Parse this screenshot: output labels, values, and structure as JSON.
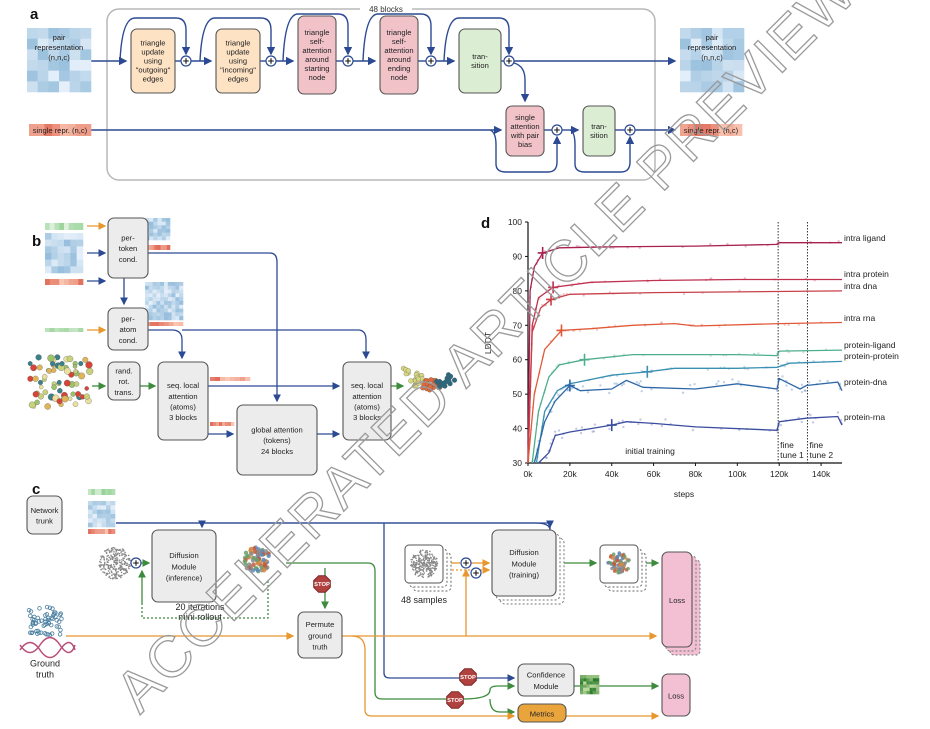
{
  "watermark": "ACCELERATED ARTICLE PREVIEW",
  "colors": {
    "blue_arrow": "#2c4a94",
    "orange_arrow": "#e8962e",
    "green_arrow": "#3d8b3d",
    "peach_box": "#fde2c4",
    "pink_box": "#f1c3c9",
    "green_box": "#dbedd3",
    "gray_box": "#ececec",
    "loss_box": "#f2c0d2",
    "metrics_box": "#e9a53c"
  },
  "panel_a": {
    "label": "a",
    "repeat": "48 blocks",
    "pair_in": [
      "pair",
      "representation",
      "(n,n,c)"
    ],
    "pair_out": [
      "pair",
      "representation",
      "(n,n,c)"
    ],
    "single_in": "single repr. (n,c)",
    "single_out": "single repr. (n,c)",
    "tri_out": [
      "triangle",
      "update",
      "using",
      "\"outgoing\"",
      "edges"
    ],
    "tri_in": [
      "triangle",
      "update",
      "using",
      "\"incoming\"",
      "edges"
    ],
    "tri_att_start": [
      "triangle",
      "self-",
      "attention",
      "around",
      "starting",
      "node"
    ],
    "tri_att_end": [
      "triangle",
      "self-",
      "attention",
      "around",
      "ending",
      "node"
    ],
    "transition_pair": [
      "tran-",
      "sition"
    ],
    "single_att": [
      "single",
      "attention",
      "with pair",
      "bias"
    ],
    "transition_single": [
      "tran-",
      "sition"
    ]
  },
  "panel_b": {
    "label": "b",
    "per_token": [
      "per-",
      "token",
      "cond."
    ],
    "per_atom": [
      "per-",
      "atom",
      "cond."
    ],
    "rand_rot": [
      "rand.",
      "rot.",
      "trans."
    ],
    "seq_local_1": [
      "seq. local",
      "attention",
      "(atoms)",
      "3 blocks"
    ],
    "global_att": [
      "global attention",
      "(tokens)",
      "24 blocks"
    ],
    "seq_local_2": [
      "seq. local",
      "attention",
      "(atoms)",
      "3 blocks"
    ]
  },
  "panel_c": {
    "label": "c",
    "network_trunk": [
      "Network",
      "trunk"
    ],
    "diff_inference": [
      "Diffusion",
      "Module",
      "(inference)"
    ],
    "rollout": [
      "20 iterations",
      "mini rollout"
    ],
    "stop": "STOP",
    "permute": [
      "Permute",
      "ground",
      "truth"
    ],
    "ground_truth": [
      "Ground",
      "truth"
    ],
    "samples": "48 samples",
    "diff_training": [
      "Diffusion",
      "Module",
      "(training)"
    ],
    "loss_main": [
      "Loss"
    ],
    "confidence": [
      "Confidence",
      "Module"
    ],
    "metrics": [
      "Metrics"
    ],
    "loss_small": [
      "Loss"
    ]
  },
  "chart_data": {
    "panel_label": "d",
    "type": "line",
    "xlabel": "steps",
    "ylabel": "LDDT",
    "xlim": [
      0,
      150000
    ],
    "ylim": [
      30,
      100
    ],
    "x_ticks": [
      "0k",
      "20k",
      "40k",
      "60k",
      "80k",
      "100k",
      "120k",
      "140k"
    ],
    "x_tick_values": [
      0,
      20000,
      40000,
      60000,
      80000,
      100000,
      120000,
      140000
    ],
    "y_ticks": [
      "30",
      "40",
      "50",
      "60",
      "70",
      "80",
      "90",
      "100"
    ],
    "y_tick_values": [
      30,
      40,
      50,
      60,
      70,
      80,
      90,
      100
    ],
    "grid": false,
    "phase_boundaries": [
      119500,
      133500
    ],
    "phase_labels": [
      "initial training",
      "fine tune 1",
      "fine tune 2"
    ],
    "series": [
      {
        "name": "intra ligand",
        "color": "#a8204c",
        "marker": [
          7000,
          91
        ],
        "x": [
          0,
          1000,
          3000,
          7000,
          15000,
          40000,
          80000,
          119000,
          120000,
          150000
        ],
        "y": [
          30,
          80,
          87,
          91,
          92.5,
          92.8,
          93,
          93.5,
          94,
          94
        ]
      },
      {
        "name": "intra protein",
        "color": "#c0304f",
        "marker": [
          12000,
          81
        ],
        "x": [
          0,
          2000,
          5000,
          12000,
          30000,
          60000,
          100000,
          150000
        ],
        "y": [
          30,
          70,
          78,
          81,
          82.5,
          83,
          83.3,
          83.3
        ]
      },
      {
        "name": "intra dna",
        "color": "#c8404a",
        "marker": [
          11000,
          77.5
        ],
        "x": [
          0,
          2000,
          6000,
          11000,
          20000,
          60000,
          150000
        ],
        "y": [
          30,
          68,
          75,
          77.5,
          79,
          79.5,
          80
        ]
      },
      {
        "name": "intra rna",
        "color": "#e05a3a",
        "marker": [
          16000,
          68.5
        ],
        "x": [
          0,
          3000,
          8000,
          16000,
          30000,
          50000,
          70000,
          80000,
          120000,
          150000
        ],
        "y": [
          30,
          50,
          63,
          68.5,
          69,
          70,
          70.5,
          69.8,
          70.5,
          70.8
        ]
      },
      {
        "name": "protein-ligand",
        "color": "#4fae8e",
        "marker": [
          27000,
          60
        ],
        "x": [
          2000,
          5000,
          10000,
          15000,
          27000,
          50000,
          100000,
          119000,
          120000,
          150000
        ],
        "y": [
          30,
          45,
          55,
          58.5,
          60,
          61.5,
          61.5,
          61.2,
          62.5,
          62.8
        ]
      },
      {
        "name": "protein-protein",
        "color": "#3a90b2",
        "marker": [
          57000,
          56.5
        ],
        "x": [
          4000,
          8000,
          14000,
          20000,
          40000,
          57000,
          70000,
          100000,
          119000,
          125000,
          150000
        ],
        "y": [
          30,
          45,
          51,
          53,
          55.5,
          56.5,
          57.5,
          57.5,
          57.8,
          59,
          59.5
        ]
      },
      {
        "name": "protein-dna",
        "color": "#2e68a8",
        "marker": [
          20000,
          52.5
        ],
        "x": [
          3000,
          8000,
          13000,
          20000,
          25000,
          40000,
          47000,
          55000,
          80000,
          100000,
          119000,
          120000,
          130000,
          133000,
          148000,
          150000
        ],
        "y": [
          30,
          42,
          48,
          52.5,
          51,
          51.5,
          54,
          52,
          51.5,
          53,
          51.5,
          54.5,
          51.5,
          52.5,
          53.5,
          51
        ]
      },
      {
        "name": "protein-rna",
        "color": "#3a4c9e",
        "marker": [
          40000,
          41
        ],
        "x": [
          5000,
          10000,
          13000,
          20000,
          30000,
          40000,
          47000,
          60000,
          80000,
          119000,
          120000,
          133000,
          148000,
          150000
        ],
        "y": [
          30,
          33,
          38,
          39,
          40,
          41,
          42,
          41.5,
          40.5,
          39.5,
          42,
          43,
          43.5,
          41
        ]
      }
    ]
  }
}
